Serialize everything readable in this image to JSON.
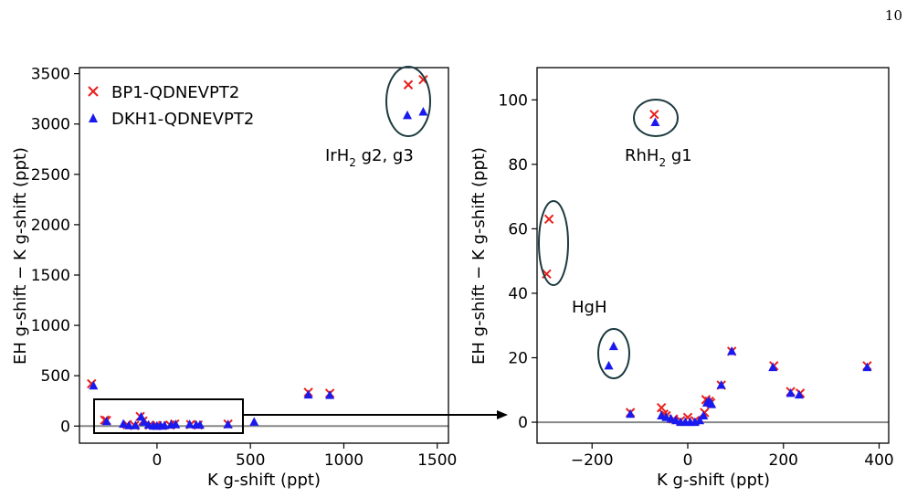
{
  "page_number": "10",
  "chart_data": [
    {
      "type": "scatter",
      "xlabel": "K g-shift (ppt)",
      "ylabel": "EH g-shift − K g-shift (ppt)",
      "xlim": [
        -415,
        1560
      ],
      "ylim": [
        -170,
        3560
      ],
      "xticks": [
        0,
        500,
        1000,
        1500
      ],
      "xtick_labels": [
        "0",
        "500",
        "1000",
        "1500"
      ],
      "yticks": [
        0,
        500,
        1000,
        1500,
        2000,
        2500,
        3000,
        3500
      ],
      "ytick_labels": [
        "0",
        "500",
        "1000",
        "1500",
        "2000",
        "2500",
        "3000",
        "3500"
      ],
      "grid": false,
      "legend_position": "top-left",
      "reference_line_y": 0,
      "series": [
        {
          "name": "BP1-QDNEVPT2",
          "marker": "x",
          "color": "#e8201c",
          "points": [
            [
              -350,
              420
            ],
            [
              -280,
              60
            ],
            [
              -270,
              55
            ],
            [
              -160,
              15
            ],
            [
              -120,
              5
            ],
            [
              -90,
              95
            ],
            [
              -75,
              50
            ],
            [
              -40,
              10
            ],
            [
              0,
              5
            ],
            [
              30,
              5
            ],
            [
              70,
              10
            ],
            [
              95,
              20
            ],
            [
              180,
              15
            ],
            [
              220,
              10
            ],
            [
              380,
              20
            ],
            [
              810,
              335
            ],
            [
              925,
              325
            ],
            [
              1345,
              3390
            ],
            [
              1425,
              3440
            ]
          ]
        },
        {
          "name": "DKH1-QDNEVPT2",
          "marker": "triangle",
          "color": "#1a1aee",
          "points": [
            [
              -340,
              400
            ],
            [
              -270,
              45
            ],
            [
              -180,
              20
            ],
            [
              -150,
              5
            ],
            [
              -115,
              5
            ],
            [
              -85,
              90
            ],
            [
              -70,
              40
            ],
            [
              -45,
              10
            ],
            [
              -20,
              0
            ],
            [
              0,
              0
            ],
            [
              20,
              0
            ],
            [
              40,
              5
            ],
            [
              75,
              10
            ],
            [
              100,
              15
            ],
            [
              175,
              15
            ],
            [
              210,
              10
            ],
            [
              230,
              10
            ],
            [
              380,
              15
            ],
            [
              520,
              40
            ],
            [
              810,
              310
            ],
            [
              925,
              305
            ],
            [
              1340,
              3085
            ],
            [
              1425,
              3120
            ]
          ]
        }
      ],
      "annotations": [
        {
          "text": "IrH",
          "subscript": "2",
          "suffix": " g2, g3"
        }
      ]
    },
    {
      "type": "scatter",
      "xlabel": "K g-shift (ppt)",
      "ylabel": "EH g-shift − K g-shift (ppt)",
      "xlim": [
        -315,
        420
      ],
      "ylim": [
        -6.5,
        110
      ],
      "xticks": [
        -200,
        0,
        200,
        400
      ],
      "xtick_labels": [
        "−200",
        "0",
        "200",
        "400"
      ],
      "yticks": [
        0,
        20,
        40,
        60,
        80,
        100
      ],
      "ytick_labels": [
        "0",
        "20",
        "40",
        "60",
        "80",
        "100"
      ],
      "grid": false,
      "reference_line_y": 0,
      "series": [
        {
          "name": "BP1-QDNEVPT2",
          "marker": "x",
          "color": "#e8201c",
          "points": [
            [
              -290,
              63
            ],
            [
              -295,
              46
            ],
            [
              -120,
              3
            ],
            [
              -55,
              4.5
            ],
            [
              -50,
              2.5
            ],
            [
              -45,
              2
            ],
            [
              -30,
              1
            ],
            [
              -15,
              0.5
            ],
            [
              0,
              1.5
            ],
            [
              15,
              0.5
            ],
            [
              35,
              3
            ],
            [
              38,
              7
            ],
            [
              45,
              6.5
            ],
            [
              48,
              6
            ],
            [
              70,
              11.5
            ],
            [
              92,
              22
            ],
            [
              180,
              17.5
            ],
            [
              215,
              9.5
            ],
            [
              235,
              9
            ],
            [
              375,
              17.5
            ],
            [
              -70,
              95.5
            ]
          ]
        },
        {
          "name": "DKH1-QDNEVPT2",
          "marker": "triangle",
          "color": "#1a1aee",
          "points": [
            [
              -165,
              17.5
            ],
            [
              -155,
              23.5
            ],
            [
              -120,
              2.5
            ],
            [
              -55,
              2
            ],
            [
              -45,
              1.5
            ],
            [
              -35,
              1
            ],
            [
              -25,
              0.5
            ],
            [
              -15,
              0
            ],
            [
              -5,
              0
            ],
            [
              5,
              0
            ],
            [
              15,
              0
            ],
            [
              25,
              0.5
            ],
            [
              33,
              2
            ],
            [
              40,
              6
            ],
            [
              45,
              6.5
            ],
            [
              50,
              5.5
            ],
            [
              70,
              11.5
            ],
            [
              92,
              22
            ],
            [
              178,
              17
            ],
            [
              215,
              9
            ],
            [
              233,
              8.5
            ],
            [
              375,
              17
            ],
            [
              -68,
              93
            ]
          ]
        }
      ],
      "annotations": [
        {
          "text": "RhH",
          "subscript": "2",
          "suffix": " g1"
        },
        {
          "text": "HgH",
          "subscript": "",
          "suffix": ""
        }
      ]
    }
  ],
  "colors": {
    "bp1": "#e8201c",
    "dkh1": "#1a1aee",
    "zero_line": "#888888",
    "ellipse": "#1c3a40"
  }
}
